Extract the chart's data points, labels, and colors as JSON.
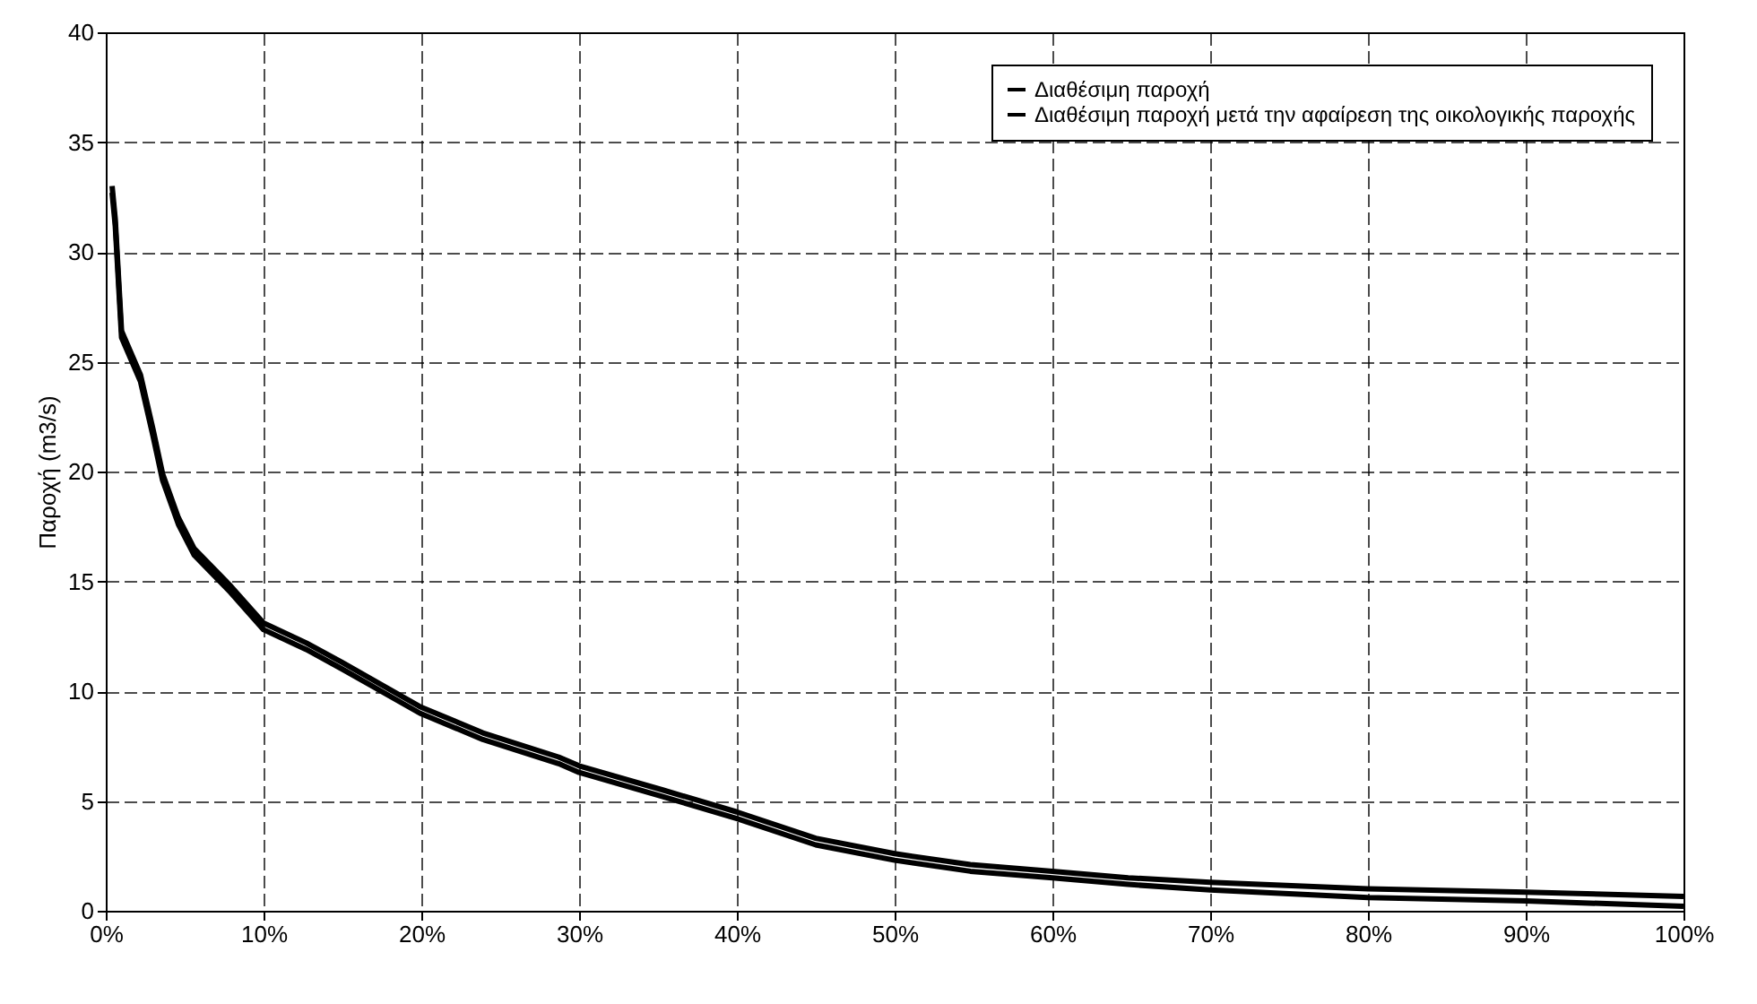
{
  "chart_data": {
    "type": "line",
    "ylabel": "Παροχή (m3/s)",
    "xlim": [
      0,
      100
    ],
    "ylim": [
      0,
      40
    ],
    "xticks": [
      {
        "value": 0,
        "label": "0%"
      },
      {
        "value": 10,
        "label": "10%"
      },
      {
        "value": 20,
        "label": "20%"
      },
      {
        "value": 30,
        "label": "30%"
      },
      {
        "value": 40,
        "label": "40%"
      },
      {
        "value": 50,
        "label": "50%"
      },
      {
        "value": 60,
        "label": "60%"
      },
      {
        "value": 70,
        "label": "70%"
      },
      {
        "value": 80,
        "label": "80%"
      },
      {
        "value": 90,
        "label": "90%"
      },
      {
        "value": 100,
        "label": "100%"
      }
    ],
    "yticks": [
      0,
      5,
      10,
      15,
      20,
      25,
      30,
      35,
      40
    ],
    "grid": true,
    "legend": "top right",
    "x": [
      0.4,
      0.6,
      1.0,
      2.2,
      3.0,
      3.6,
      4.6,
      5.6,
      7.9,
      10,
      12.7,
      15,
      19.9,
      23.9,
      28.7,
      30,
      35.3,
      40,
      45,
      50,
      54.8,
      60,
      64.8,
      70,
      80,
      90,
      100
    ],
    "series": [
      {
        "name": "Διαθέσιμη παροχή",
        "color": "#000000",
        "values": [
          33.0,
          31.5,
          26.4,
          24.4,
          21.9,
          19.9,
          17.9,
          16.5,
          14.8,
          13.1,
          12.2,
          11.3,
          9.3,
          8.1,
          7.0,
          6.6,
          5.5,
          4.5,
          3.3,
          2.6,
          2.1,
          1.8,
          1.5,
          1.3,
          1.0,
          0.85,
          0.65
        ]
      },
      {
        "name": "Διαθέσιμη παροχή μετά την αφαίρεση της οικολογικής παροχής",
        "color": "#000000",
        "values": [
          32.7,
          31.2,
          26.1,
          24.1,
          21.6,
          19.6,
          17.6,
          16.2,
          14.5,
          12.8,
          11.9,
          11.0,
          9.0,
          7.8,
          6.7,
          6.3,
          5.2,
          4.2,
          3.0,
          2.3,
          1.8,
          1.5,
          1.2,
          0.95,
          0.6,
          0.45,
          0.2
        ]
      }
    ]
  }
}
